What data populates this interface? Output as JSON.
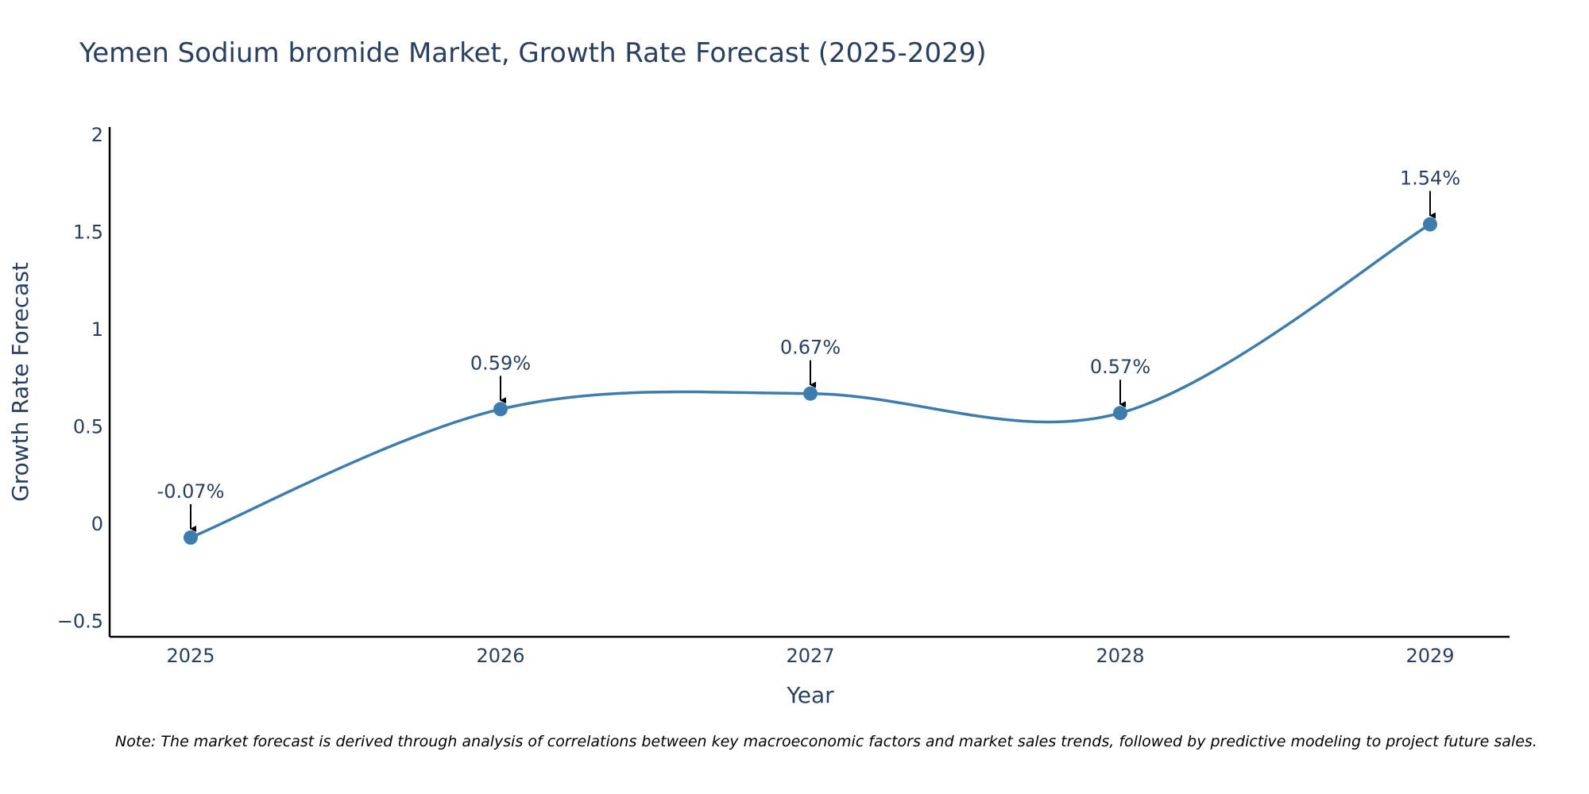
{
  "chart_data": {
    "type": "line",
    "title": "Yemen Sodium bromide Market, Growth Rate Forecast (2025-2029)",
    "xlabel": "Year",
    "ylabel": "Growth Rate Forecast",
    "x": [
      "2025",
      "2026",
      "2027",
      "2028",
      "2029"
    ],
    "values": [
      -0.07,
      0.59,
      0.67,
      0.57,
      1.54
    ],
    "annotations": [
      "-0.07%",
      "0.59%",
      "0.67%",
      "0.57%",
      "1.54%"
    ],
    "ylim": [
      -0.58,
      2.04
    ],
    "yticks": [
      -0.5,
      0,
      0.5,
      1,
      1.5,
      2
    ],
    "ytick_labels": [
      "−0.5",
      "0",
      "0.5",
      "1",
      "1.5",
      "2"
    ],
    "line_shape": "spline",
    "grid": false,
    "colors": {
      "line": "#3d7cad",
      "marker": "#3d7cad",
      "arrow": "#000000"
    }
  },
  "note": "Note: The market forecast is derived through analysis of correlations between key macroeconomic factors and market sales trends, followed by predictive modeling to project future sales."
}
